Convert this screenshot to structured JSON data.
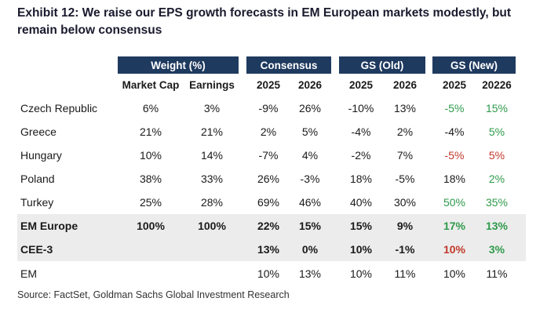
{
  "title": "Exhibit 12: We raise our EPS growth forecasts in EM European markets modestly, but remain below consensus",
  "source": "Source: FactSet, Goldman Sachs Global Investment Research",
  "colors": {
    "header_bg": "#1f3a5f",
    "positive": "#2e9a4a",
    "negative": "#c0392b",
    "shaded_row": "#ececec"
  },
  "header_groups": [
    "Weight (%)",
    "Consensus",
    "GS (Old)",
    "GS (New)"
  ],
  "sub_headers": [
    "Market Cap",
    "Earnings",
    "2025",
    "2026",
    "2025",
    "2026",
    "2025",
    "20226"
  ],
  "rows": [
    {
      "label": "Czech Republic",
      "cells": [
        "6%",
        "3%",
        "-9%",
        "26%",
        "-10%",
        "13%",
        "-5%",
        "15%"
      ],
      "bold": false,
      "shaded": false,
      "gs_new_colors": [
        "pos",
        "pos"
      ]
    },
    {
      "label": "Greece",
      "cells": [
        "21%",
        "21%",
        "2%",
        "5%",
        "-4%",
        "2%",
        "-4%",
        "5%"
      ],
      "bold": false,
      "shaded": false,
      "gs_new_colors": [
        "neutral",
        "pos"
      ]
    },
    {
      "label": "Hungary",
      "cells": [
        "10%",
        "14%",
        "-7%",
        "4%",
        "-2%",
        "7%",
        "-5%",
        "5%"
      ],
      "bold": false,
      "shaded": false,
      "gs_new_colors": [
        "neg",
        "neg"
      ]
    },
    {
      "label": "Poland",
      "cells": [
        "38%",
        "33%",
        "26%",
        "-3%",
        "18%",
        "-5%",
        "18%",
        "2%"
      ],
      "bold": false,
      "shaded": false,
      "gs_new_colors": [
        "neutral",
        "pos"
      ]
    },
    {
      "label": "Turkey",
      "cells": [
        "25%",
        "28%",
        "69%",
        "46%",
        "40%",
        "30%",
        "50%",
        "35%"
      ],
      "bold": false,
      "shaded": false,
      "gs_new_colors": [
        "pos",
        "pos"
      ]
    },
    {
      "label": "EM Europe",
      "cells": [
        "100%",
        "100%",
        "22%",
        "15%",
        "15%",
        "9%",
        "17%",
        "13%"
      ],
      "bold": true,
      "shaded": true,
      "gs_new_colors": [
        "pos",
        "pos"
      ]
    },
    {
      "label": "CEE-3",
      "cells": [
        "",
        "",
        "13%",
        "0%",
        "10%",
        "-1%",
        "10%",
        "3%"
      ],
      "bold": true,
      "shaded": true,
      "gs_new_colors": [
        "neg",
        "pos"
      ]
    },
    {
      "label": "EM",
      "cells": [
        "",
        "",
        "10%",
        "13%",
        "10%",
        "11%",
        "10%",
        "11%"
      ],
      "bold": false,
      "shaded": false,
      "gs_new_colors": [
        "neutral",
        "neutral"
      ]
    }
  ]
}
